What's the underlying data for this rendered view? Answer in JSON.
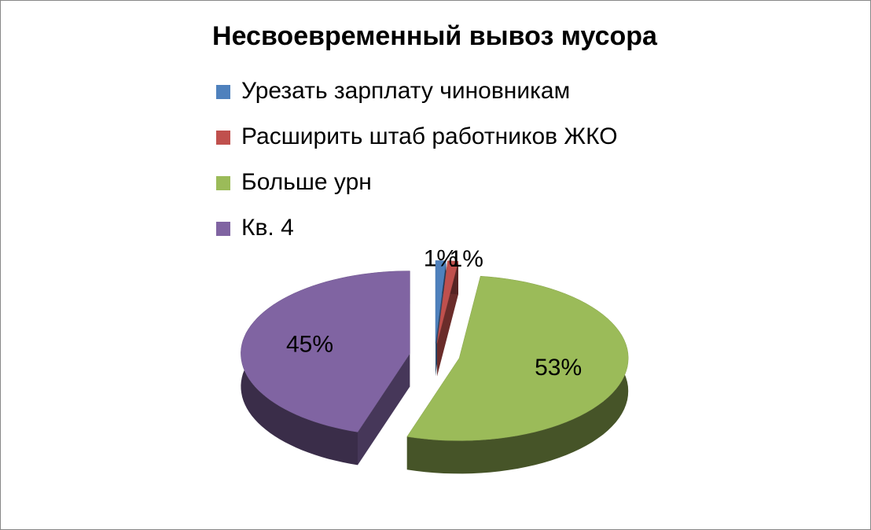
{
  "chart_data": {
    "type": "pie",
    "title": "Несвоевременный вывоз мусора",
    "categories": [
      "Урезать зарплату чиновникам",
      "Расширить штаб работников ЖКО",
      "Больше урн",
      "Кв. 4"
    ],
    "values": [
      1,
      1,
      53,
      45
    ],
    "value_labels": [
      "1%",
      "1%",
      "53%",
      "45%"
    ],
    "colors": [
      "#4f81bd",
      "#c0504d",
      "#9bbb59",
      "#8064a2"
    ],
    "legend": "top"
  }
}
